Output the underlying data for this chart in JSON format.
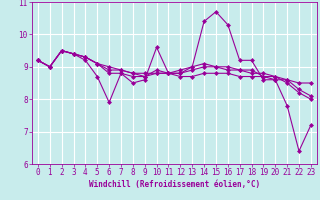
{
  "title": "",
  "xlabel": "Windchill (Refroidissement éolien,°C)",
  "ylabel": "",
  "background_color": "#c8ecec",
  "line_color": "#990099",
  "grid_color": "#ffffff",
  "x_values": [
    0,
    1,
    2,
    3,
    4,
    5,
    6,
    7,
    8,
    9,
    10,
    11,
    12,
    13,
    14,
    15,
    16,
    17,
    18,
    19,
    20,
    21,
    22,
    23
  ],
  "series": [
    [
      9.2,
      9.0,
      9.5,
      9.4,
      9.2,
      8.7,
      7.9,
      8.8,
      8.5,
      8.6,
      9.6,
      8.8,
      8.8,
      9.0,
      10.4,
      10.7,
      10.3,
      9.2,
      9.2,
      8.6,
      8.6,
      7.8,
      6.4,
      7.2
    ],
    [
      9.2,
      9.0,
      9.5,
      9.4,
      9.3,
      9.1,
      8.8,
      8.8,
      8.7,
      8.7,
      8.9,
      8.8,
      8.9,
      9.0,
      9.1,
      9.0,
      9.0,
      8.9,
      8.9,
      8.7,
      8.6,
      8.6,
      8.3,
      8.1
    ],
    [
      9.2,
      9.0,
      9.5,
      9.4,
      9.3,
      9.1,
      8.9,
      8.9,
      8.8,
      8.7,
      8.8,
      8.8,
      8.8,
      8.9,
      9.0,
      9.0,
      8.9,
      8.9,
      8.8,
      8.8,
      8.7,
      8.6,
      8.5,
      8.5
    ],
    [
      9.2,
      9.0,
      9.5,
      9.4,
      9.3,
      9.1,
      9.0,
      8.9,
      8.8,
      8.8,
      8.8,
      8.8,
      8.7,
      8.7,
      8.8,
      8.8,
      8.8,
      8.7,
      8.7,
      8.7,
      8.7,
      8.5,
      8.2,
      8.0
    ]
  ],
  "ylim": [
    6,
    11
  ],
  "xlim": [
    -0.5,
    23.5
  ],
  "yticks": [
    6,
    7,
    8,
    9,
    10,
    11
  ],
  "xticks": [
    0,
    1,
    2,
    3,
    4,
    5,
    6,
    7,
    8,
    9,
    10,
    11,
    12,
    13,
    14,
    15,
    16,
    17,
    18,
    19,
    20,
    21,
    22,
    23
  ],
  "marker": "D",
  "markersize": 2.0,
  "linewidth": 0.8,
  "tick_fontsize": 5.5,
  "label_fontsize": 5.5
}
